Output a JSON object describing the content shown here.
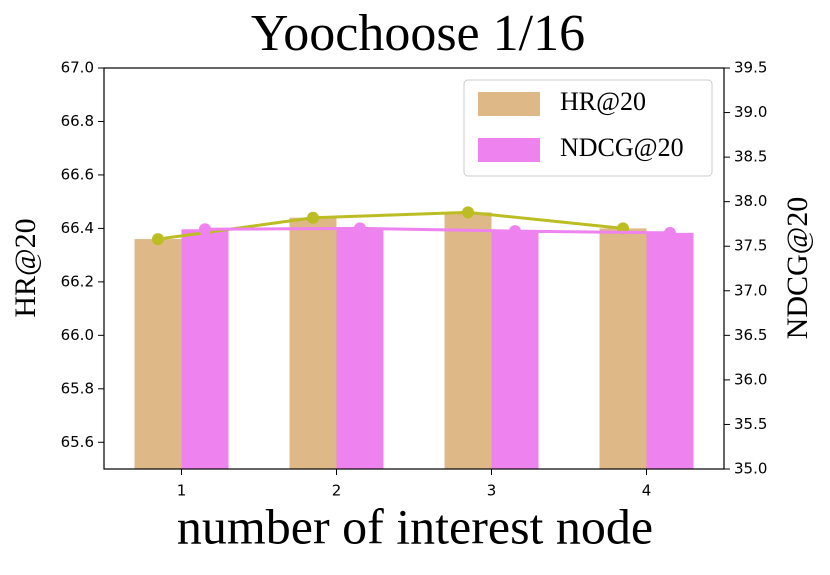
{
  "chart_data": {
    "type": "bar",
    "title": "Yoochoose 1/16",
    "x_label": "number of interest node",
    "y_label": "HR@20",
    "y2_label": "NDCG@20",
    "categories": [
      "1",
      "2",
      "3",
      "4"
    ],
    "series": [
      {
        "name": "HR@20",
        "color": "#deb887",
        "line_color": "#bcbd22",
        "values": [
          66.36,
          66.44,
          66.46,
          66.4
        ]
      },
      {
        "name": "NDCG@20",
        "color": "#ee82ee",
        "line_color": "#ee82ee",
        "axis": "y2",
        "values": [
          37.69,
          37.7,
          37.67,
          37.65
        ]
      }
    ],
    "ylim": [
      65.5,
      67.0
    ],
    "yticks": [
      65.6,
      65.8,
      {
        "value": 66.0,
        "label": "66.0"
      },
      66.2,
      66.4,
      66.6,
      66.8,
      {
        "value": 67.0,
        "label": "67.0"
      }
    ],
    "y2lim": [
      35.0,
      39.5
    ],
    "y2ticks": [
      {
        "value": 35.0,
        "label": "35.0"
      },
      35.5,
      {
        "value": 36.0,
        "label": "36.0"
      },
      36.5,
      {
        "value": 37.0,
        "label": "37.0"
      },
      37.5,
      {
        "value": 38.0,
        "label": "38.0"
      },
      38.5,
      {
        "value": 39.0,
        "label": "39.0"
      },
      39.5
    ],
    "legend": "upper right",
    "grid": false
  }
}
